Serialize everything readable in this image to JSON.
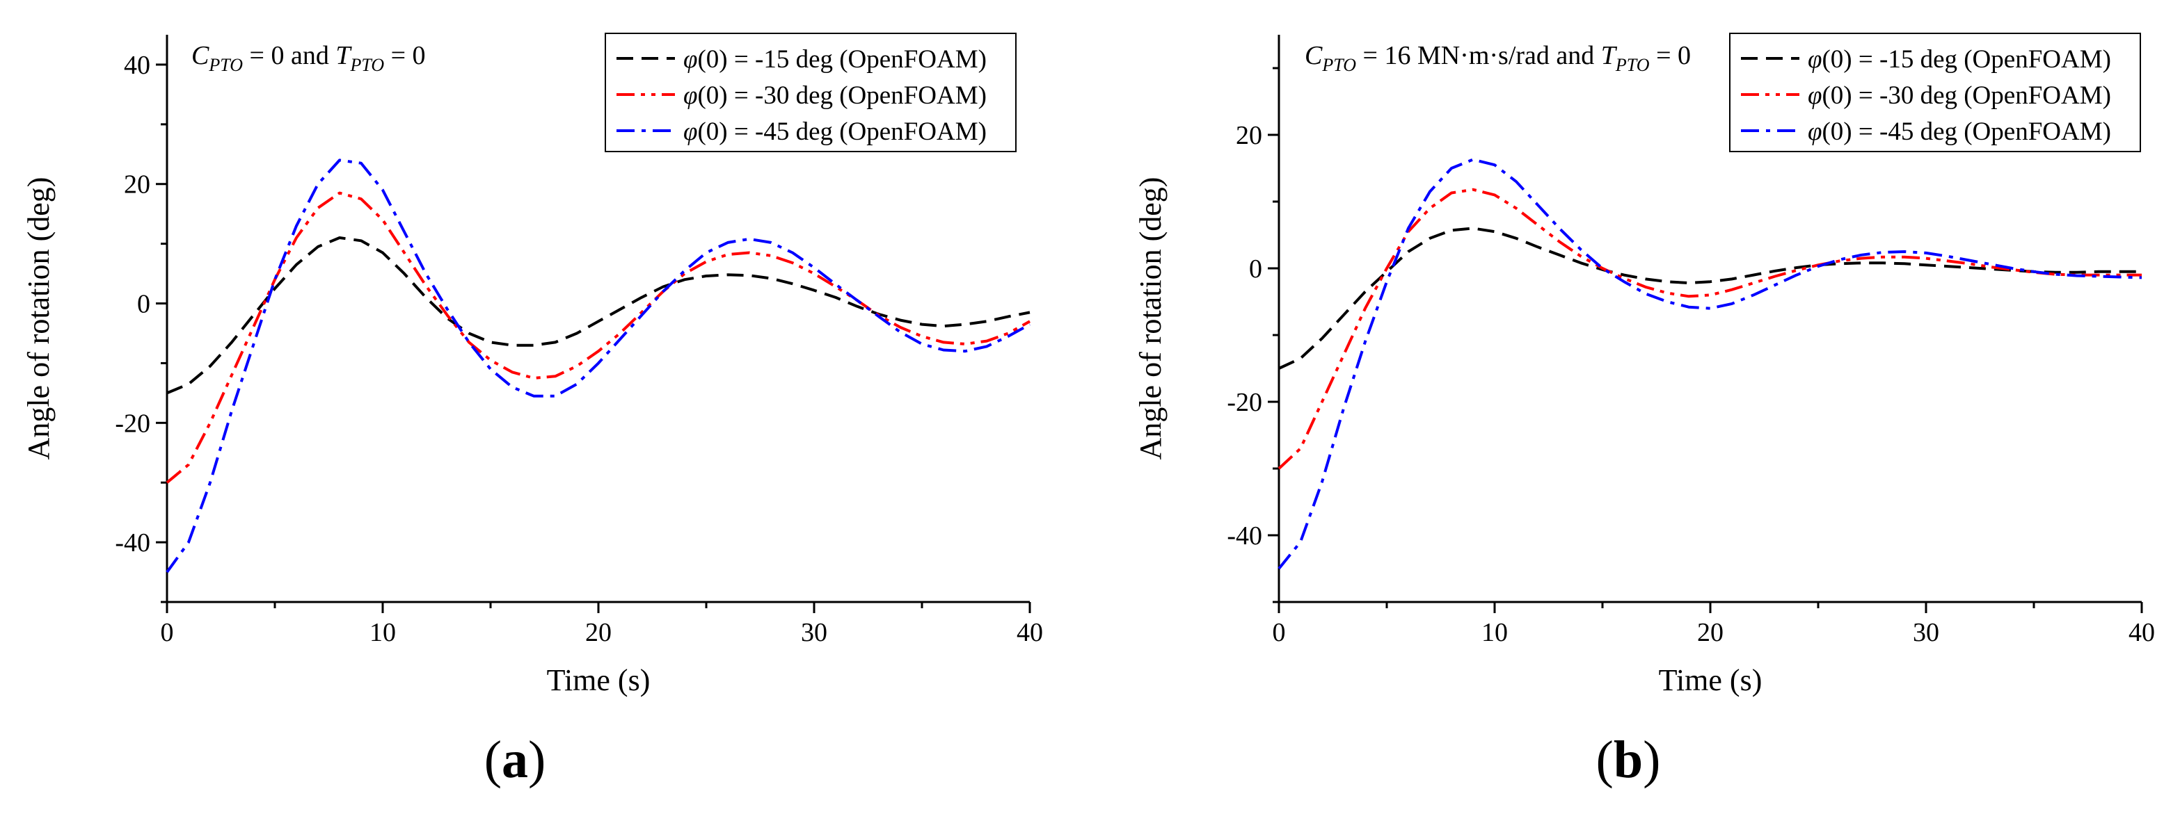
{
  "figure_labels": [
    "a",
    "b"
  ],
  "chart_data": [
    {
      "type": "line",
      "panel": "a",
      "annotation": {
        "parts": [
          {
            "text": "C",
            "style": "italic"
          },
          {
            "text": "PTO",
            "style": "sub"
          },
          {
            "text": " = 0 and ",
            "style": "normal"
          },
          {
            "text": "T",
            "style": "italic"
          },
          {
            "text": "PTO",
            "style": "sub"
          },
          {
            "text": " = 0",
            "style": "normal"
          }
        ]
      },
      "xlabel": "Time (s)",
      "ylabel": "Angle of rotation (deg)",
      "xlim": [
        0,
        40
      ],
      "ylim": [
        -50,
        45
      ],
      "xticks": [
        0,
        10,
        20,
        30,
        40
      ],
      "yticks": [
        -40,
        -20,
        0,
        20,
        40
      ],
      "legend_position": "top-right",
      "series": [
        {
          "name": "-15 deg (OpenFOAM)",
          "color": "#000000",
          "dash": "dash",
          "points": [
            [
              0,
              -15
            ],
            [
              1,
              -13.5
            ],
            [
              2,
              -10.5
            ],
            [
              3,
              -6.5
            ],
            [
              4,
              -2
            ],
            [
              5,
              2.5
            ],
            [
              6,
              6.5
            ],
            [
              7,
              9.5
            ],
            [
              8,
              11
            ],
            [
              9,
              10.5
            ],
            [
              10,
              8.5
            ],
            [
              11,
              5
            ],
            [
              12,
              1
            ],
            [
              13,
              -2.5
            ],
            [
              14,
              -5
            ],
            [
              15,
              -6.5
            ],
            [
              16,
              -7
            ],
            [
              17,
              -7
            ],
            [
              18,
              -6.5
            ],
            [
              19,
              -5
            ],
            [
              20,
              -3
            ],
            [
              21,
              -1
            ],
            [
              22,
              1
            ],
            [
              23,
              2.8
            ],
            [
              24,
              4
            ],
            [
              25,
              4.6
            ],
            [
              26,
              4.8
            ],
            [
              27,
              4.7
            ],
            [
              28,
              4.2
            ],
            [
              29,
              3.3
            ],
            [
              30,
              2.2
            ],
            [
              31,
              1
            ],
            [
              32,
              -0.5
            ],
            [
              33,
              -1.8
            ],
            [
              34,
              -2.8
            ],
            [
              35,
              -3.5
            ],
            [
              36,
              -3.8
            ],
            [
              37,
              -3.5
            ],
            [
              38,
              -3
            ],
            [
              39,
              -2.2
            ],
            [
              40,
              -1.5
            ]
          ]
        },
        {
          "name": "-30 deg (OpenFOAM)",
          "color": "#ff0000",
          "dash": "dashdotdot",
          "points": [
            [
              0,
              -30
            ],
            [
              1,
              -27
            ],
            [
              2,
              -20
            ],
            [
              3,
              -12
            ],
            [
              4,
              -4
            ],
            [
              5,
              4
            ],
            [
              6,
              11
            ],
            [
              7,
              16
            ],
            [
              8,
              18.5
            ],
            [
              9,
              17.5
            ],
            [
              10,
              14
            ],
            [
              11,
              8.5
            ],
            [
              12,
              3
            ],
            [
              13,
              -2
            ],
            [
              14,
              -6.5
            ],
            [
              15,
              -9.5
            ],
            [
              16,
              -11.5
            ],
            [
              17,
              -12.5
            ],
            [
              18,
              -12.2
            ],
            [
              19,
              -10.5
            ],
            [
              20,
              -8
            ],
            [
              21,
              -5
            ],
            [
              22,
              -1.5
            ],
            [
              23,
              2
            ],
            [
              24,
              5
            ],
            [
              25,
              7
            ],
            [
              26,
              8.2
            ],
            [
              27,
              8.5
            ],
            [
              28,
              8
            ],
            [
              29,
              6.8
            ],
            [
              30,
              5
            ],
            [
              31,
              2.8
            ],
            [
              32,
              0.5
            ],
            [
              33,
              -2
            ],
            [
              34,
              -4
            ],
            [
              35,
              -5.5
            ],
            [
              36,
              -6.5
            ],
            [
              37,
              -6.8
            ],
            [
              38,
              -6.3
            ],
            [
              39,
              -5
            ],
            [
              40,
              -3
            ]
          ]
        },
        {
          "name": "-45 deg (OpenFOAM)",
          "color": "#0000ff",
          "dash": "dashdot",
          "points": [
            [
              0,
              -45
            ],
            [
              1,
              -40
            ],
            [
              2,
              -30
            ],
            [
              3,
              -18
            ],
            [
              4,
              -7
            ],
            [
              5,
              4
            ],
            [
              6,
              13
            ],
            [
              7,
              20
            ],
            [
              8,
              24
            ],
            [
              9,
              23.5
            ],
            [
              10,
              19
            ],
            [
              11,
              12
            ],
            [
              12,
              5
            ],
            [
              13,
              -1
            ],
            [
              14,
              -6.5
            ],
            [
              15,
              -11
            ],
            [
              16,
              -14
            ],
            [
              17,
              -15.5
            ],
            [
              18,
              -15.5
            ],
            [
              19,
              -13.5
            ],
            [
              20,
              -10
            ],
            [
              21,
              -6
            ],
            [
              22,
              -2
            ],
            [
              23,
              2
            ],
            [
              24,
              5.5
            ],
            [
              25,
              8.5
            ],
            [
              26,
              10.2
            ],
            [
              27,
              10.8
            ],
            [
              28,
              10.2
            ],
            [
              29,
              8.5
            ],
            [
              30,
              6
            ],
            [
              31,
              3.2
            ],
            [
              32,
              0.5
            ],
            [
              33,
              -2.2
            ],
            [
              34,
              -4.8
            ],
            [
              35,
              -6.8
            ],
            [
              36,
              -7.8
            ],
            [
              37,
              -8
            ],
            [
              38,
              -7.2
            ],
            [
              39,
              -5.5
            ],
            [
              40,
              -3.5
            ]
          ]
        }
      ]
    },
    {
      "type": "line",
      "panel": "b",
      "annotation": {
        "parts": [
          {
            "text": "C",
            "style": "italic"
          },
          {
            "text": "PTO",
            "style": "sub"
          },
          {
            "text": " = 16 MN·m·s/rad and ",
            "style": "normal"
          },
          {
            "text": "T",
            "style": "italic"
          },
          {
            "text": "PTO",
            "style": "sub"
          },
          {
            "text": " = 0",
            "style": "normal"
          }
        ]
      },
      "xlabel": "Time (s)",
      "ylabel": "Angle of rotation (deg)",
      "xlim": [
        0,
        40
      ],
      "ylim": [
        -50,
        35
      ],
      "xticks": [
        0,
        10,
        20,
        30,
        40
      ],
      "yticks": [
        -40,
        -20,
        0,
        20
      ],
      "legend_position": "top-right",
      "series": [
        {
          "name": "-15 deg (OpenFOAM)",
          "color": "#000000",
          "dash": "dash",
          "points": [
            [
              0,
              -15
            ],
            [
              1,
              -13.5
            ],
            [
              2,
              -10.5
            ],
            [
              3,
              -7
            ],
            [
              4,
              -3.5
            ],
            [
              5,
              -0.5
            ],
            [
              6,
              2.5
            ],
            [
              7,
              4.5
            ],
            [
              8,
              5.7
            ],
            [
              9,
              6
            ],
            [
              10,
              5.5
            ],
            [
              11,
              4.5
            ],
            [
              12,
              3.2
            ],
            [
              13,
              2
            ],
            [
              14,
              0.8
            ],
            [
              15,
              -0.2
            ],
            [
              16,
              -1
            ],
            [
              17,
              -1.6
            ],
            [
              18,
              -2
            ],
            [
              19,
              -2.2
            ],
            [
              20,
              -2
            ],
            [
              21,
              -1.6
            ],
            [
              22,
              -1
            ],
            [
              23,
              -0.4
            ],
            [
              24,
              0.1
            ],
            [
              25,
              0.5
            ],
            [
              26,
              0.7
            ],
            [
              27,
              0.8
            ],
            [
              28,
              0.8
            ],
            [
              29,
              0.7
            ],
            [
              30,
              0.5
            ],
            [
              31,
              0.3
            ],
            [
              32,
              0.1
            ],
            [
              33,
              -0.1
            ],
            [
              34,
              -0.3
            ],
            [
              35,
              -0.5
            ],
            [
              36,
              -0.6
            ],
            [
              37,
              -0.6
            ],
            [
              38,
              -0.5
            ],
            [
              39,
              -0.5
            ],
            [
              40,
              -0.5
            ]
          ]
        },
        {
          "name": "-30 deg (OpenFOAM)",
          "color": "#ff0000",
          "dash": "dashdotdot",
          "points": [
            [
              0,
              -30
            ],
            [
              1,
              -27
            ],
            [
              2,
              -20
            ],
            [
              3,
              -13
            ],
            [
              4,
              -6
            ],
            [
              5,
              0
            ],
            [
              6,
              5.5
            ],
            [
              7,
              9
            ],
            [
              8,
              11.3
            ],
            [
              9,
              11.8
            ],
            [
              10,
              11
            ],
            [
              11,
              9
            ],
            [
              12,
              6.5
            ],
            [
              13,
              4
            ],
            [
              14,
              1.8
            ],
            [
              15,
              0
            ],
            [
              16,
              -1.5
            ],
            [
              17,
              -2.8
            ],
            [
              18,
              -3.7
            ],
            [
              19,
              -4.2
            ],
            [
              20,
              -4
            ],
            [
              21,
              -3.2
            ],
            [
              22,
              -2.2
            ],
            [
              23,
              -1.2
            ],
            [
              24,
              -0.3
            ],
            [
              25,
              0.5
            ],
            [
              26,
              1.1
            ],
            [
              27,
              1.5
            ],
            [
              28,
              1.7
            ],
            [
              29,
              1.7
            ],
            [
              30,
              1.5
            ],
            [
              31,
              1.1
            ],
            [
              32,
              0.7
            ],
            [
              33,
              0.2
            ],
            [
              34,
              -0.2
            ],
            [
              35,
              -0.6
            ],
            [
              36,
              -0.9
            ],
            [
              37,
              -1
            ],
            [
              38,
              -1
            ],
            [
              39,
              -1
            ],
            [
              40,
              -1
            ]
          ]
        },
        {
          "name": "-45 deg (OpenFOAM)",
          "color": "#0000ff",
          "dash": "dashdot",
          "points": [
            [
              0,
              -45
            ],
            [
              1,
              -41
            ],
            [
              2,
              -32
            ],
            [
              3,
              -21
            ],
            [
              4,
              -11
            ],
            [
              5,
              -2
            ],
            [
              6,
              6
            ],
            [
              7,
              11.5
            ],
            [
              8,
              15
            ],
            [
              9,
              16.3
            ],
            [
              10,
              15.5
            ],
            [
              11,
              13
            ],
            [
              12,
              9.5
            ],
            [
              13,
              6
            ],
            [
              14,
              2.8
            ],
            [
              15,
              0
            ],
            [
              16,
              -2
            ],
            [
              17,
              -3.8
            ],
            [
              18,
              -5
            ],
            [
              19,
              -5.8
            ],
            [
              20,
              -6
            ],
            [
              21,
              -5.3
            ],
            [
              22,
              -4
            ],
            [
              23,
              -2.5
            ],
            [
              24,
              -1
            ],
            [
              25,
              0.3
            ],
            [
              26,
              1.3
            ],
            [
              27,
              2
            ],
            [
              28,
              2.4
            ],
            [
              29,
              2.5
            ],
            [
              30,
              2.3
            ],
            [
              31,
              1.8
            ],
            [
              32,
              1.2
            ],
            [
              33,
              0.6
            ],
            [
              34,
              0
            ],
            [
              35,
              -0.5
            ],
            [
              36,
              -0.9
            ],
            [
              37,
              -1.1
            ],
            [
              38,
              -1.2
            ],
            [
              39,
              -1.3
            ],
            [
              40,
              -1.4
            ]
          ]
        }
      ]
    }
  ]
}
